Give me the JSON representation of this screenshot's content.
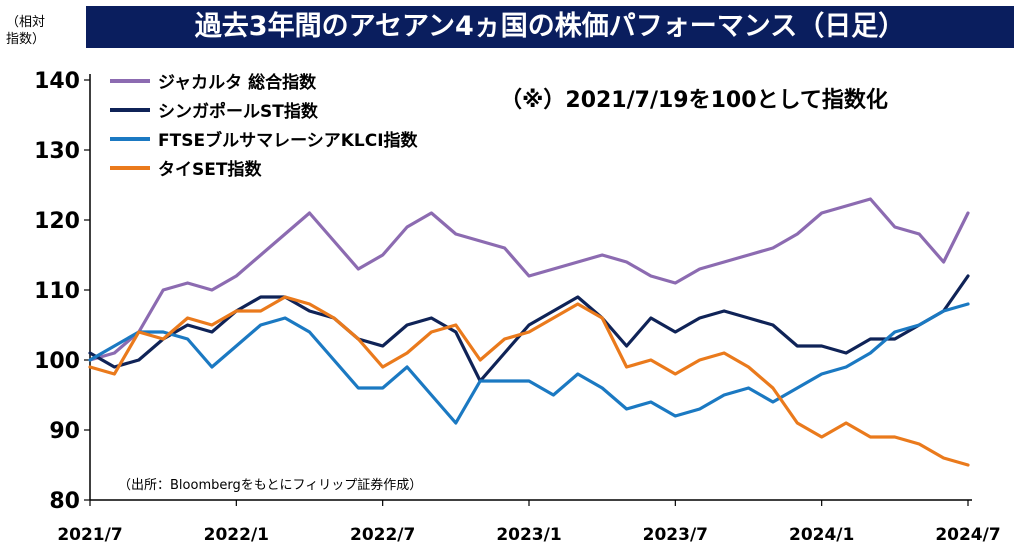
{
  "header": {
    "title": "過去3年間のアセアン4ヵ国の株価パフォーマンス（日足）",
    "unit_label_line1": "（相対",
    "unit_label_line2": "指数）",
    "note": "（※）2021/7/19を100として指数化",
    "source": "（出所：Bloombergをもとにフィリップ証券作成）"
  },
  "chart_data": {
    "type": "line",
    "ylim": [
      80,
      140
    ],
    "yticks": [
      80,
      90,
      100,
      110,
      120,
      130,
      140
    ],
    "xticks": [
      "2021/7",
      "2022/1",
      "2022/7",
      "2023/1",
      "2023/7",
      "2024/1",
      "2024/7"
    ],
    "x": [
      "2021/7",
      "2021/8",
      "2021/9",
      "2021/10",
      "2021/11",
      "2021/12",
      "2022/1",
      "2022/2",
      "2022/3",
      "2022/4",
      "2022/5",
      "2022/6",
      "2022/7",
      "2022/8",
      "2022/9",
      "2022/10",
      "2022/11",
      "2022/12",
      "2023/1",
      "2023/2",
      "2023/3",
      "2023/4",
      "2023/5",
      "2023/6",
      "2023/7",
      "2023/8",
      "2023/9",
      "2023/10",
      "2023/11",
      "2023/12",
      "2024/1",
      "2024/2",
      "2024/3",
      "2024/4",
      "2024/5",
      "2024/6",
      "2024/7"
    ],
    "series": [
      {
        "name": "ジャカルタ 総合指数",
        "color": "#8c6bb1",
        "values": [
          100,
          101,
          104,
          110,
          111,
          110,
          112,
          115,
          118,
          121,
          117,
          113,
          115,
          119,
          121,
          118,
          117,
          116,
          112,
          113,
          114,
          115,
          114,
          112,
          111,
          113,
          114,
          115,
          116,
          118,
          121,
          122,
          123,
          119,
          118,
          114,
          121
        ]
      },
      {
        "name": "シンガポールST指数",
        "color": "#0f2357",
        "values": [
          101,
          99,
          100,
          103,
          105,
          104,
          107,
          109,
          109,
          107,
          106,
          103,
          102,
          105,
          106,
          104,
          97,
          101,
          105,
          107,
          109,
          106,
          102,
          106,
          104,
          106,
          107,
          106,
          105,
          102,
          102,
          101,
          103,
          103,
          105,
          107,
          112
        ]
      },
      {
        "name": "FTSEブルサマレーシアKLCI指数",
        "color": "#1b79c2",
        "values": [
          100,
          102,
          104,
          104,
          103,
          99,
          102,
          105,
          106,
          104,
          100,
          96,
          96,
          99,
          95,
          91,
          97,
          97,
          97,
          95,
          98,
          96,
          93,
          94,
          92,
          93,
          95,
          96,
          94,
          96,
          98,
          99,
          101,
          104,
          105,
          107,
          108
        ]
      },
      {
        "name": "タイSET指数",
        "color": "#ea7a1c",
        "values": [
          99,
          98,
          104,
          103,
          106,
          105,
          107,
          107,
          109,
          108,
          106,
          103,
          99,
          101,
          104,
          105,
          100,
          103,
          104,
          106,
          108,
          106,
          99,
          100,
          98,
          100,
          101,
          99,
          96,
          91,
          89,
          91,
          89,
          89,
          88,
          86,
          85
        ]
      }
    ]
  }
}
